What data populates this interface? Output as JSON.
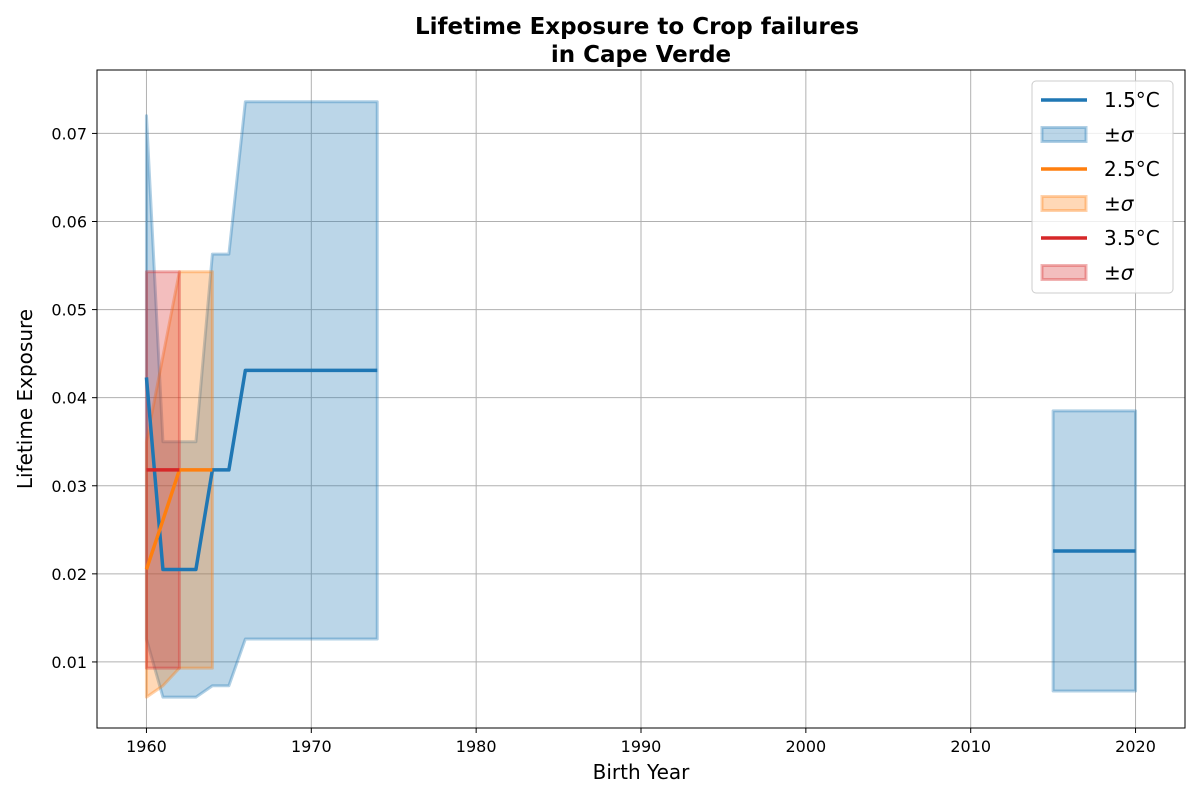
{
  "chart_data": {
    "type": "line",
    "title": [
      "Lifetime Exposure to Crop failures",
      "in Cape Verde"
    ],
    "xlabel": "Birth Year",
    "ylabel": "Lifetime Exposure",
    "xlim": [
      1957,
      2023
    ],
    "ylim": [
      0.0025,
      0.0772
    ],
    "xticks": [
      1960,
      1970,
      1980,
      1990,
      2000,
      2010,
      2020
    ],
    "yticks": [
      0.01,
      0.02,
      0.03,
      0.04,
      0.05,
      0.06,
      0.07
    ],
    "ytick_labels": [
      "0.01",
      "0.02",
      "0.03",
      "0.04",
      "0.05",
      "0.06",
      "0.07"
    ],
    "grid": true,
    "legend_position": "top-right",
    "series": [
      {
        "name": "1.5°C",
        "band_label": "±σ",
        "color": "#1f77b4",
        "segments": [
          {
            "x": [
              1960,
              1961,
              1962,
              1963,
              1964,
              1965,
              1966,
              1967,
              1968,
              1969,
              1970,
              1971,
              1972,
              1973,
              1974
            ],
            "y": [
              0.0423,
              0.0205,
              0.0205,
              0.0205,
              0.0318,
              0.0318,
              0.0431,
              0.0431,
              0.0431,
              0.0431,
              0.0431,
              0.0431,
              0.0431,
              0.0431,
              0.0431
            ],
            "lower": [
              0.0126,
              0.006,
              0.006,
              0.006,
              0.0073,
              0.0073,
              0.0126,
              0.0126,
              0.0126,
              0.0126,
              0.0126,
              0.0126,
              0.0126,
              0.0126,
              0.0126
            ],
            "upper": [
              0.072,
              0.035,
              0.035,
              0.035,
              0.0563,
              0.0563,
              0.0736,
              0.0736,
              0.0736,
              0.0736,
              0.0736,
              0.0736,
              0.0736,
              0.0736,
              0.0736
            ]
          },
          {
            "x": [
              2015,
              2016,
              2017,
              2018,
              2019,
              2020
            ],
            "y": [
              0.0226,
              0.0226,
              0.0226,
              0.0226,
              0.0226,
              0.0226
            ],
            "lower": [
              0.0067,
              0.0067,
              0.0067,
              0.0067,
              0.0067,
              0.0067
            ],
            "upper": [
              0.0385,
              0.0385,
              0.0385,
              0.0385,
              0.0385,
              0.0385
            ]
          }
        ]
      },
      {
        "name": "2.5°C",
        "band_label": "±σ",
        "color": "#ff7f0e",
        "segments": [
          {
            "x": [
              1960,
              1961,
              1962,
              1963,
              1964
            ],
            "y": [
              0.0205,
              0.0261,
              0.0318,
              0.0318,
              0.0318
            ],
            "lower": [
              0.006,
              0.0073,
              0.0093,
              0.0093,
              0.0093
            ],
            "upper": [
              0.035,
              0.0447,
              0.0543,
              0.0543,
              0.0543
            ]
          }
        ]
      },
      {
        "name": "3.5°C",
        "band_label": "±σ",
        "color": "#d62728",
        "segments": [
          {
            "x": [
              1960,
              1961,
              1962
            ],
            "y": [
              0.0318,
              0.0318,
              0.0318
            ],
            "lower": [
              0.0093,
              0.0093,
              0.0093
            ],
            "upper": [
              0.0543,
              0.0543,
              0.0543
            ]
          }
        ]
      }
    ]
  }
}
